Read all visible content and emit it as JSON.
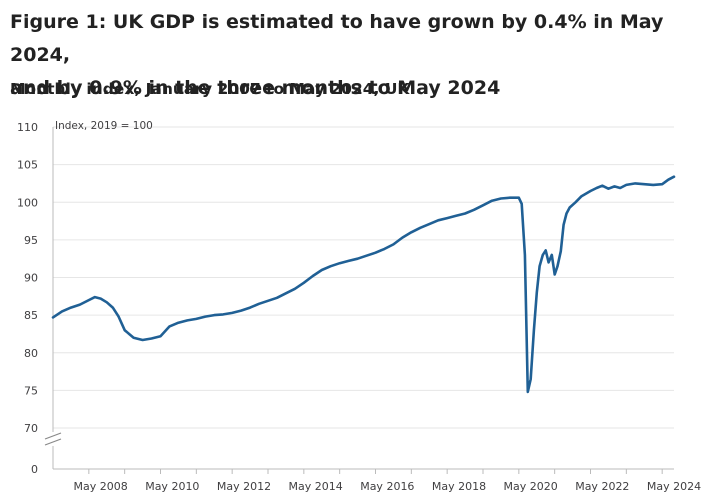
{
  "title_line1": "Figure 1: UK GDP is estimated to have grown by 0.4% in May 2024,",
  "title_line2": "and by 0.9% in the three months to May 2024",
  "subtitle": "Monthly index, January 2007 to May 2024, UK",
  "chart_data": {
    "type": "line",
    "ylabel": "Index, 2019 = 100",
    "y_ticks": [
      0,
      70,
      75,
      80,
      85,
      90,
      95,
      100,
      105,
      110
    ],
    "y_axis_break": [
      0,
      70
    ],
    "ylim": [
      67,
      110
    ],
    "x_tick_labels": [
      "May 2008",
      "May 2010",
      "May 2012",
      "May 2014",
      "May 2016",
      "May 2018",
      "May 2020",
      "May 2022",
      "May 2024"
    ],
    "x_start": "2007-01",
    "x_end": "2024-05",
    "line_color": "#206095",
    "grid": true,
    "series": [
      {
        "name": "",
        "values": [
          [
            2007.0,
            84.7
          ],
          [
            2007.25,
            85.5
          ],
          [
            2007.5,
            86.0
          ],
          [
            2007.75,
            86.4
          ],
          [
            2008.0,
            87.0
          ],
          [
            2008.17,
            87.4
          ],
          [
            2008.33,
            87.2
          ],
          [
            2008.5,
            86.7
          ],
          [
            2008.67,
            86.0
          ],
          [
            2008.83,
            84.8
          ],
          [
            2009.0,
            83.0
          ],
          [
            2009.25,
            82.0
          ],
          [
            2009.5,
            81.7
          ],
          [
            2009.75,
            81.9
          ],
          [
            2010.0,
            82.2
          ],
          [
            2010.25,
            83.5
          ],
          [
            2010.5,
            84.0
          ],
          [
            2010.75,
            84.3
          ],
          [
            2011.0,
            84.5
          ],
          [
            2011.25,
            84.8
          ],
          [
            2011.5,
            85.0
          ],
          [
            2011.75,
            85.1
          ],
          [
            2012.0,
            85.3
          ],
          [
            2012.25,
            85.6
          ],
          [
            2012.5,
            86.0
          ],
          [
            2012.75,
            86.5
          ],
          [
            2013.0,
            86.9
          ],
          [
            2013.25,
            87.3
          ],
          [
            2013.5,
            87.9
          ],
          [
            2013.75,
            88.5
          ],
          [
            2014.0,
            89.3
          ],
          [
            2014.25,
            90.2
          ],
          [
            2014.5,
            91.0
          ],
          [
            2014.75,
            91.5
          ],
          [
            2015.0,
            91.9
          ],
          [
            2015.25,
            92.2
          ],
          [
            2015.5,
            92.5
          ],
          [
            2015.75,
            92.9
          ],
          [
            2016.0,
            93.3
          ],
          [
            2016.25,
            93.8
          ],
          [
            2016.5,
            94.4
          ],
          [
            2016.75,
            95.3
          ],
          [
            2017.0,
            96.0
          ],
          [
            2017.25,
            96.6
          ],
          [
            2017.5,
            97.1
          ],
          [
            2017.75,
            97.6
          ],
          [
            2018.0,
            97.9
          ],
          [
            2018.25,
            98.2
          ],
          [
            2018.5,
            98.5
          ],
          [
            2018.75,
            99.0
          ],
          [
            2019.0,
            99.6
          ],
          [
            2019.25,
            100.2
          ],
          [
            2019.5,
            100.5
          ],
          [
            2019.75,
            100.6
          ],
          [
            2020.0,
            100.6
          ],
          [
            2020.08,
            99.8
          ],
          [
            2020.17,
            93.0
          ],
          [
            2020.25,
            74.8
          ],
          [
            2020.33,
            76.5
          ],
          [
            2020.42,
            83.0
          ],
          [
            2020.5,
            88.0
          ],
          [
            2020.58,
            91.5
          ],
          [
            2020.67,
            93.0
          ],
          [
            2020.75,
            93.6
          ],
          [
            2020.83,
            92.0
          ],
          [
            2020.92,
            93.0
          ],
          [
            2021.0,
            90.4
          ],
          [
            2021.08,
            91.5
          ],
          [
            2021.17,
            93.5
          ],
          [
            2021.25,
            97.0
          ],
          [
            2021.33,
            98.5
          ],
          [
            2021.42,
            99.3
          ],
          [
            2021.58,
            100.0
          ],
          [
            2021.75,
            100.8
          ],
          [
            2022.0,
            101.5
          ],
          [
            2022.17,
            101.9
          ],
          [
            2022.33,
            102.2
          ],
          [
            2022.5,
            101.8
          ],
          [
            2022.67,
            102.1
          ],
          [
            2022.83,
            101.9
          ],
          [
            2023.0,
            102.3
          ],
          [
            2023.25,
            102.5
          ],
          [
            2023.5,
            102.4
          ],
          [
            2023.75,
            102.3
          ],
          [
            2024.0,
            102.4
          ],
          [
            2024.17,
            103.0
          ],
          [
            2024.33,
            103.4
          ]
        ]
      }
    ]
  }
}
